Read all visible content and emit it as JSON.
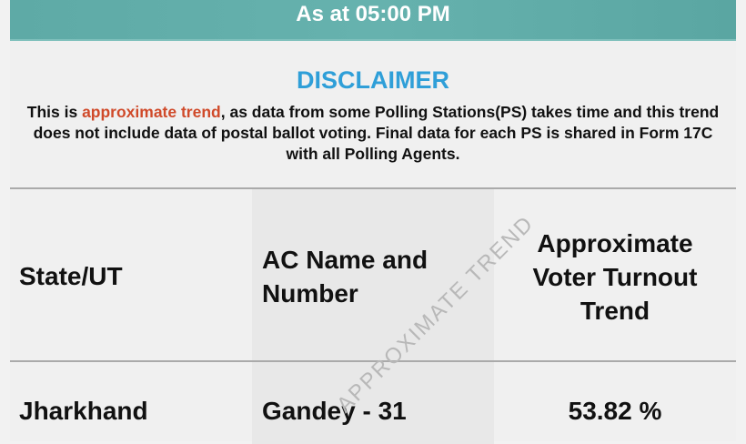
{
  "banner": {
    "time_text": "As at 05:00 PM"
  },
  "disclaimer": {
    "title": "DISCLAIMER",
    "text_prefix": "This is ",
    "highlight": "approximate trend",
    "text_suffix": ", as data from some Polling Stations(PS) takes time and this trend does not include data of postal ballot voting. Final data for each PS is shared in Form 17C with all Polling Agents."
  },
  "table": {
    "headers": [
      "State/UT",
      "AC Name and Number",
      "Approximate Voter Turnout Trend"
    ],
    "rows": [
      [
        "Jharkhand",
        "Gandey - 31",
        "53.82 %"
      ]
    ]
  },
  "watermark": "APPROXIMATE TREND",
  "colors": {
    "banner": "#62aeaa",
    "title": "#2f9fd8",
    "highlight": "#d04a2a"
  }
}
